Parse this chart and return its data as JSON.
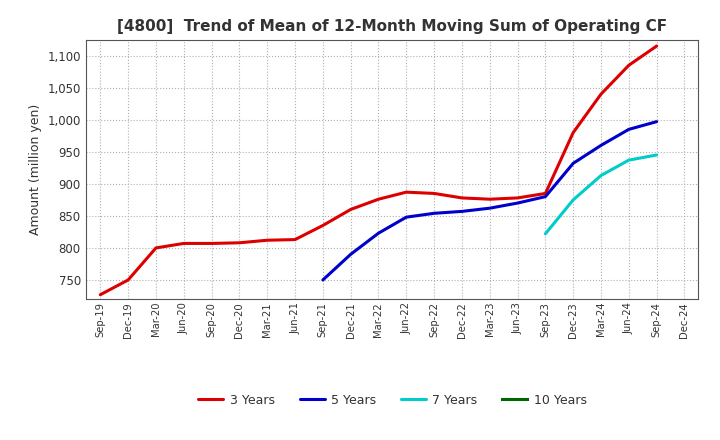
{
  "title": "[4800]  Trend of Mean of 12-Month Moving Sum of Operating CF",
  "ylabel": "Amount (million yen)",
  "background_color": "#ffffff",
  "grid_color": "#b0b0b0",
  "ylim": [
    720,
    1125
  ],
  "yticks": [
    750,
    800,
    850,
    900,
    950,
    1000,
    1050,
    1100
  ],
  "x_labels": [
    "Sep-19",
    "Dec-19",
    "Mar-20",
    "Jun-20",
    "Sep-20",
    "Dec-20",
    "Mar-21",
    "Jun-21",
    "Sep-21",
    "Dec-21",
    "Mar-22",
    "Jun-22",
    "Sep-22",
    "Dec-22",
    "Mar-23",
    "Jun-23",
    "Sep-23",
    "Dec-23",
    "Mar-24",
    "Jun-24",
    "Sep-24",
    "Dec-24"
  ],
  "series": {
    "3 Years": {
      "color": "#dd0000",
      "data_x": [
        0,
        1,
        2,
        3,
        4,
        5,
        6,
        7,
        8,
        9,
        10,
        11,
        12,
        13,
        14,
        15,
        16,
        17,
        18,
        19,
        20
      ],
      "data_y": [
        727,
        750,
        800,
        807,
        807,
        808,
        812,
        813,
        835,
        860,
        876,
        887,
        885,
        878,
        876,
        878,
        885,
        980,
        1040,
        1085,
        1115
      ]
    },
    "5 Years": {
      "color": "#0000cc",
      "data_x": [
        8,
        9,
        10,
        11,
        12,
        13,
        14,
        15,
        16,
        17,
        18,
        19,
        20
      ],
      "data_y": [
        750,
        790,
        823,
        848,
        854,
        857,
        862,
        870,
        880,
        932,
        960,
        985,
        997
      ]
    },
    "7 Years": {
      "color": "#00cccc",
      "data_x": [
        16,
        17,
        18,
        19,
        20
      ],
      "data_y": [
        822,
        875,
        913,
        937,
        945
      ]
    },
    "10 Years": {
      "color": "#006600",
      "data_x": [],
      "data_y": []
    }
  },
  "legend_order": [
    "3 Years",
    "5 Years",
    "7 Years",
    "10 Years"
  ]
}
